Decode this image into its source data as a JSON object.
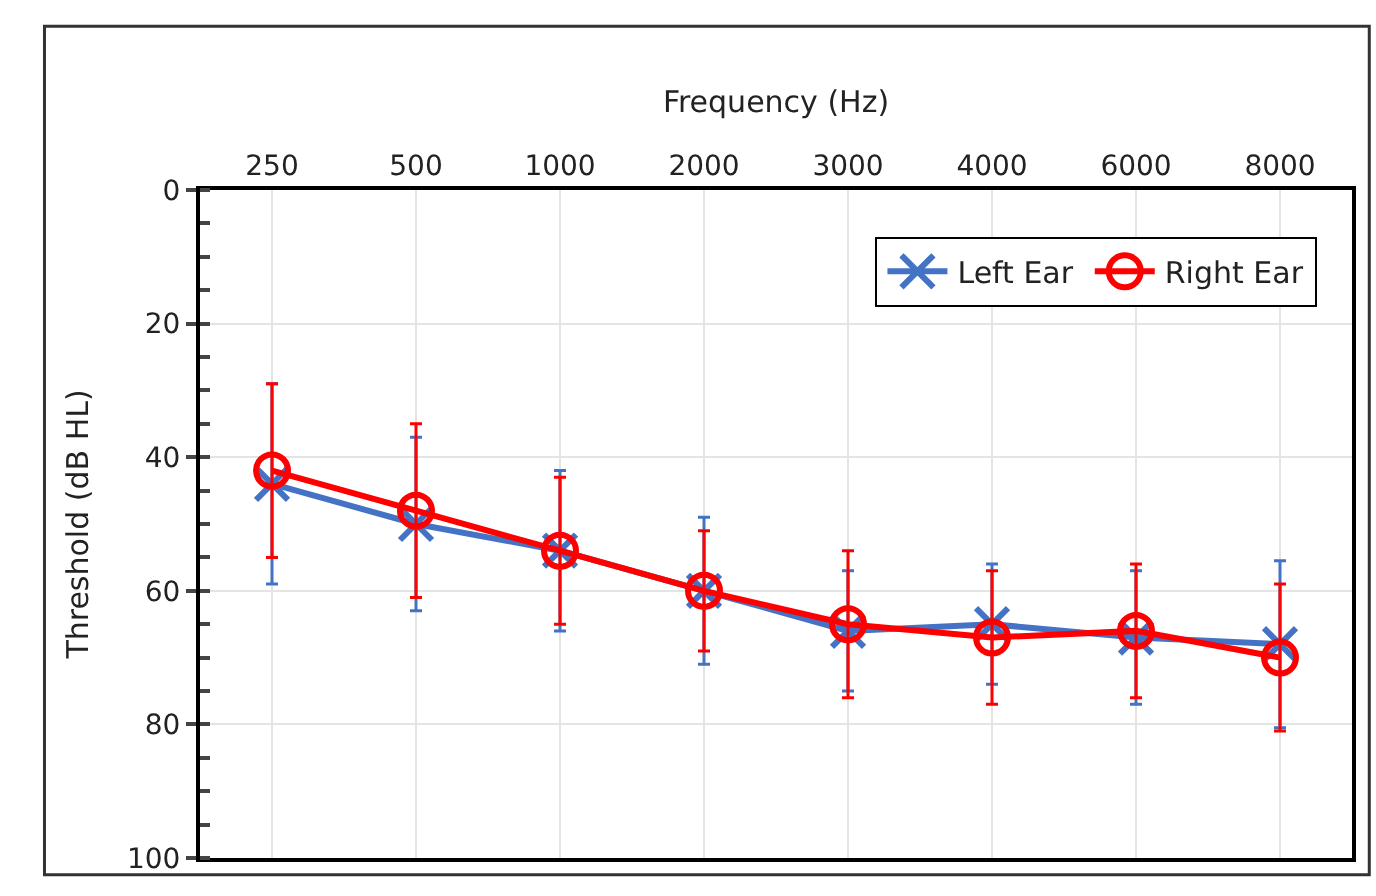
{
  "chart_data": {
    "type": "line",
    "xlabel": "Frequency (Hz)",
    "ylabel": "Threshold (dB HL)",
    "categories": [
      "250",
      "500",
      "1000",
      "2000",
      "3000",
      "4000",
      "6000",
      "8000"
    ],
    "series": [
      {
        "name": "Left Ear",
        "color": "#4472c4",
        "marker": "cross",
        "values": [
          44,
          50,
          54,
          60,
          66,
          65,
          67,
          68
        ],
        "errors": [
          15,
          13,
          12,
          11,
          9,
          9,
          10,
          12.5
        ]
      },
      {
        "name": "Right Ear",
        "color": "#ff0000",
        "marker": "circle",
        "values": [
          42,
          48,
          54,
          60,
          65,
          67,
          66,
          70
        ],
        "errors": [
          13,
          13,
          11,
          9,
          11,
          10,
          10,
          11
        ]
      }
    ],
    "ylim": [
      100,
      0
    ],
    "yticks": [
      0,
      20,
      40,
      60,
      80,
      100
    ],
    "grid": true,
    "legend": "top right",
    "line_style": "solid"
  }
}
